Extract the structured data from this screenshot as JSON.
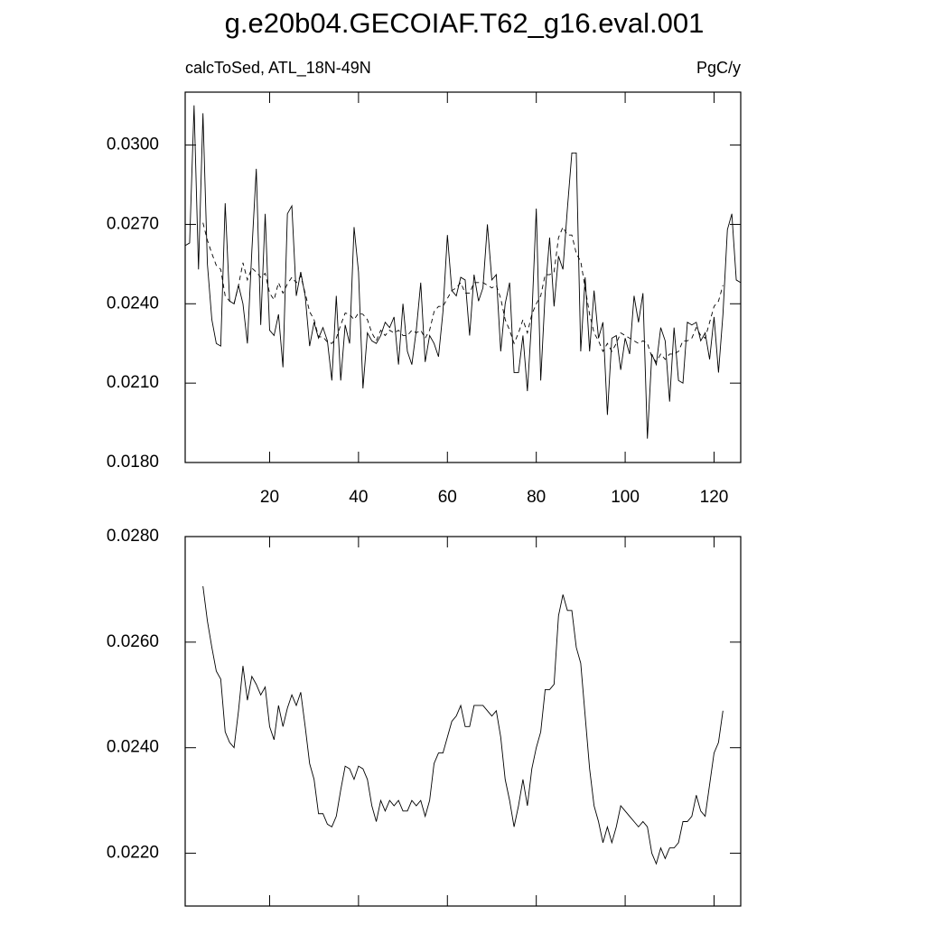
{
  "chart_data": [
    {
      "type": "line",
      "title": "g.e20b04.GECOIAF.T62_g16.eval.001",
      "subtitle": "calcToSed, ATL_18N-49N",
      "units": "PgC/y",
      "xlim": [
        1,
        126
      ],
      "ylim": [
        0.018,
        0.032
      ],
      "xticks": [
        20,
        40,
        60,
        80,
        100,
        120
      ],
      "yticks": [
        {
          "value": 0.018,
          "label": "0.0180"
        },
        {
          "value": 0.021,
          "label": "0.0210"
        },
        {
          "value": 0.024,
          "label": "0.0240"
        },
        {
          "value": 0.027,
          "label": "0.0270"
        },
        {
          "value": 0.03,
          "label": "0.0300"
        }
      ],
      "series": [
        {
          "color": "#000000",
          "style": "solid",
          "x": [
            1,
            2,
            3,
            4,
            5,
            6,
            7,
            8,
            9,
            10,
            11,
            12,
            13,
            14,
            15,
            16,
            17,
            18,
            19,
            20,
            21,
            22,
            23,
            24,
            25,
            26,
            27,
            28,
            29,
            30,
            31,
            32,
            33,
            34,
            35,
            36,
            37,
            38,
            39,
            40,
            41,
            42,
            43,
            44,
            45,
            46,
            47,
            48,
            49,
            50,
            51,
            52,
            53,
            54,
            55,
            56,
            57,
            58,
            59,
            60,
            61,
            62,
            63,
            64,
            65,
            66,
            67,
            68,
            69,
            70,
            71,
            72,
            73,
            74,
            75,
            76,
            77,
            78,
            79,
            80,
            81,
            82,
            83,
            84,
            85,
            86,
            87,
            88,
            89,
            90,
            91,
            92,
            93,
            94,
            95,
            96,
            97,
            98,
            99,
            100,
            101,
            102,
            103,
            104,
            105,
            106,
            107,
            108,
            109,
            110,
            111,
            112,
            113,
            114,
            115,
            116,
            117,
            118,
            119,
            120,
            121,
            122,
            123,
            124,
            125,
            126
          ],
          "values": [
            0.0262,
            0.0263,
            0.0315,
            0.0253,
            0.0312,
            0.0255,
            0.0234,
            0.0225,
            0.0224,
            0.0278,
            0.0241,
            0.024,
            0.0247,
            0.024,
            0.0225,
            0.026,
            0.0291,
            0.0232,
            0.0274,
            0.023,
            0.0228,
            0.0236,
            0.0216,
            0.0274,
            0.0277,
            0.0243,
            0.0252,
            0.0243,
            0.0224,
            0.0233,
            0.0227,
            0.0231,
            0.0226,
            0.0211,
            0.0243,
            0.0211,
            0.0232,
            0.0225,
            0.0269,
            0.0252,
            0.0208,
            0.0229,
            0.0226,
            0.0225,
            0.0228,
            0.0233,
            0.0231,
            0.0235,
            0.0217,
            0.024,
            0.0222,
            0.0217,
            0.023,
            0.0248,
            0.0218,
            0.0228,
            0.0225,
            0.022,
            0.0237,
            0.0266,
            0.0245,
            0.0243,
            0.025,
            0.0249,
            0.0228,
            0.0251,
            0.0241,
            0.0246,
            0.027,
            0.0249,
            0.0251,
            0.0222,
            0.024,
            0.0248,
            0.0214,
            0.0214,
            0.0228,
            0.0207,
            0.0235,
            0.0276,
            0.0211,
            0.0244,
            0.0265,
            0.0239,
            0.0258,
            0.0253,
            0.0276,
            0.0297,
            0.0297,
            0.0222,
            0.025,
            0.0222,
            0.0245,
            0.0227,
            0.0233,
            0.0198,
            0.0227,
            0.0228,
            0.0215,
            0.0227,
            0.0221,
            0.0243,
            0.0233,
            0.0244,
            0.0189,
            0.0221,
            0.0217,
            0.0231,
            0.0226,
            0.0203,
            0.0231,
            0.0211,
            0.021,
            0.0233,
            0.0232,
            0.0233,
            0.0226,
            0.0229,
            0.0219,
            0.0235,
            0.0214,
            0.0236,
            0.0268,
            0.0274,
            0.0249,
            0.0248
          ]
        },
        {
          "color": "#000000",
          "style": "dashed",
          "x": [
            5,
            6,
            7,
            8,
            9,
            10,
            11,
            12,
            13,
            14,
            15,
            16,
            17,
            18,
            19,
            20,
            21,
            22,
            23,
            24,
            25,
            26,
            27,
            28,
            29,
            30,
            31,
            32,
            33,
            34,
            35,
            36,
            37,
            38,
            39,
            40,
            41,
            42,
            43,
            44,
            45,
            46,
            47,
            48,
            49,
            50,
            51,
            52,
            53,
            54,
            55,
            56,
            57,
            58,
            59,
            60,
            61,
            62,
            63,
            64,
            65,
            66,
            67,
            68,
            69,
            70,
            71,
            72,
            73,
            74,
            75,
            76,
            77,
            78,
            79,
            80,
            81,
            82,
            83,
            84,
            85,
            86,
            87,
            88,
            89,
            90,
            91,
            92,
            93,
            94,
            95,
            96,
            97,
            98,
            99,
            100,
            101,
            102,
            103,
            104,
            105,
            106,
            107,
            108,
            109,
            110,
            111,
            112,
            113,
            114,
            115,
            116,
            117,
            118,
            119,
            120,
            121,
            122
          ],
          "values": [
            0.02706,
            0.0264,
            0.0259,
            0.02545,
            0.0253,
            0.0243,
            0.0241,
            0.024,
            0.0247,
            0.02555,
            0.0249,
            0.02535,
            0.0252,
            0.025,
            0.02515,
            0.0244,
            0.02415,
            0.0248,
            0.0244,
            0.02475,
            0.025,
            0.0248,
            0.02505,
            0.0244,
            0.0237,
            0.0234,
            0.02275,
            0.02275,
            0.02255,
            0.0225,
            0.0227,
            0.0232,
            0.02365,
            0.0236,
            0.0234,
            0.02365,
            0.0236,
            0.0234,
            0.0229,
            0.0226,
            0.023,
            0.0228,
            0.023,
            0.0229,
            0.023,
            0.0228,
            0.0228,
            0.023,
            0.0229,
            0.023,
            0.0227,
            0.023,
            0.0237,
            0.0239,
            0.0239,
            0.0242,
            0.0245,
            0.0246,
            0.0248,
            0.0244,
            0.0244,
            0.0248,
            0.0248,
            0.0248,
            0.0247,
            0.0246,
            0.0247,
            0.0242,
            0.0234,
            0.023,
            0.0225,
            0.0229,
            0.0234,
            0.0229,
            0.0236,
            0.024,
            0.0243,
            0.0251,
            0.0251,
            0.0252,
            0.0265,
            0.0269,
            0.0266,
            0.0266,
            0.0259,
            0.0256,
            0.0246,
            0.0236,
            0.0229,
            0.0226,
            0.0222,
            0.0225,
            0.0222,
            0.0225,
            0.0229,
            0.0228,
            0.0227,
            0.0226,
            0.0225,
            0.0226,
            0.0225,
            0.022,
            0.0218,
            0.0221,
            0.0219,
            0.0221,
            0.0221,
            0.0222,
            0.0226,
            0.0226,
            0.0227,
            0.0231,
            0.0228,
            0.0227,
            0.0233,
            0.0239,
            0.0241,
            0.0247
          ]
        }
      ]
    },
    {
      "type": "line",
      "xlim": [
        1,
        126
      ],
      "ylim": [
        0.021,
        0.028
      ],
      "xticks": [
        20,
        40,
        60,
        80,
        100,
        120
      ],
      "yticks": [
        {
          "value": 0.022,
          "label": "0.0220"
        },
        {
          "value": 0.024,
          "label": "0.0240"
        },
        {
          "value": 0.026,
          "label": "0.0260"
        },
        {
          "value": 0.028,
          "label": "0.0280"
        }
      ],
      "series": [
        {
          "color": "#000000",
          "style": "solid",
          "x": [
            5,
            6,
            7,
            8,
            9,
            10,
            11,
            12,
            13,
            14,
            15,
            16,
            17,
            18,
            19,
            20,
            21,
            22,
            23,
            24,
            25,
            26,
            27,
            28,
            29,
            30,
            31,
            32,
            33,
            34,
            35,
            36,
            37,
            38,
            39,
            40,
            41,
            42,
            43,
            44,
            45,
            46,
            47,
            48,
            49,
            50,
            51,
            52,
            53,
            54,
            55,
            56,
            57,
            58,
            59,
            60,
            61,
            62,
            63,
            64,
            65,
            66,
            67,
            68,
            69,
            70,
            71,
            72,
            73,
            74,
            75,
            76,
            77,
            78,
            79,
            80,
            81,
            82,
            83,
            84,
            85,
            86,
            87,
            88,
            89,
            90,
            91,
            92,
            93,
            94,
            95,
            96,
            97,
            98,
            99,
            100,
            101,
            102,
            103,
            104,
            105,
            106,
            107,
            108,
            109,
            110,
            111,
            112,
            113,
            114,
            115,
            116,
            117,
            118,
            119,
            120,
            121,
            122
          ],
          "values": [
            0.02706,
            0.0264,
            0.0259,
            0.02545,
            0.0253,
            0.0243,
            0.0241,
            0.024,
            0.0247,
            0.02555,
            0.0249,
            0.02535,
            0.0252,
            0.025,
            0.02515,
            0.0244,
            0.02415,
            0.0248,
            0.0244,
            0.02475,
            0.025,
            0.0248,
            0.02505,
            0.0244,
            0.0237,
            0.0234,
            0.02275,
            0.02275,
            0.02255,
            0.0225,
            0.0227,
            0.0232,
            0.02365,
            0.0236,
            0.0234,
            0.02365,
            0.0236,
            0.0234,
            0.0229,
            0.0226,
            0.023,
            0.0228,
            0.023,
            0.0229,
            0.023,
            0.0228,
            0.0228,
            0.023,
            0.0229,
            0.023,
            0.0227,
            0.023,
            0.0237,
            0.0239,
            0.0239,
            0.0242,
            0.0245,
            0.0246,
            0.0248,
            0.0244,
            0.0244,
            0.0248,
            0.0248,
            0.0248,
            0.0247,
            0.0246,
            0.0247,
            0.0242,
            0.0234,
            0.023,
            0.0225,
            0.0229,
            0.0234,
            0.0229,
            0.0236,
            0.024,
            0.0243,
            0.0251,
            0.0251,
            0.0252,
            0.0265,
            0.0269,
            0.0266,
            0.0266,
            0.0259,
            0.0256,
            0.0246,
            0.0236,
            0.0229,
            0.0226,
            0.0222,
            0.0225,
            0.0222,
            0.0225,
            0.0229,
            0.0228,
            0.0227,
            0.0226,
            0.0225,
            0.0226,
            0.0225,
            0.022,
            0.0218,
            0.0221,
            0.0219,
            0.0221,
            0.0221,
            0.0222,
            0.0226,
            0.0226,
            0.0227,
            0.0231,
            0.0228,
            0.0227,
            0.0233,
            0.0239,
            0.0241,
            0.0247
          ]
        }
      ]
    }
  ]
}
